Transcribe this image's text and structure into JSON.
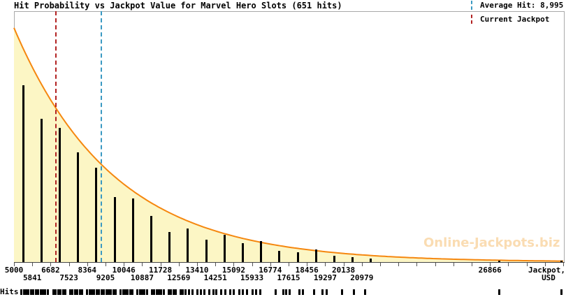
{
  "title": "Hit Probability vs Jackpot Value for Marvel Hero Slots (651 hits)",
  "watermark": "Online-Jackpots.biz",
  "rug_label": "Hits",
  "legend": {
    "average_hit": {
      "label": "Average Hit: 8,995",
      "color": "#3a99c2"
    },
    "current_jackpot": {
      "label": "Current Jackpot",
      "color": "#b22222"
    }
  },
  "colors": {
    "curve": "#f5870f",
    "fill": "#fcf6c5",
    "bars": "#000000",
    "average_hit_line": "#3a99c2",
    "current_jackpot_line": "#b22222",
    "plot_border": "#a9a9a9",
    "axis": "#444444",
    "watermark": "#fadcb2"
  },
  "chart_data": {
    "type": "bar",
    "subtype": "histogram-with-exponential-fit-and-rug",
    "title": "Hit Probability vs Jackpot Value for Marvel Hero Slots (651 hits)",
    "total_hits": 651,
    "xlabel_line1": "Jackpot,",
    "xlabel_line2": "USD",
    "x_range": [
      5000,
      30230
    ],
    "bin_width": 841,
    "tick_step": 841,
    "ylim_hits": [
      0,
      157
    ],
    "grid": false,
    "legend_position": "top-right",
    "average_hit_value": 8995,
    "current_jackpot_value": 6890,
    "tick_labels_row1": [
      5000,
      6682,
      8364,
      10046,
      11728,
      13410,
      15092,
      16774,
      18456,
      20138,
      26866
    ],
    "tick_labels_row2": [
      5841,
      7523,
      9205,
      10887,
      12569,
      14251,
      15933,
      17615,
      19297,
      20979
    ],
    "bars": [
      {
        "value": 5420,
        "count": 111
      },
      {
        "value": 6261,
        "count": 90
      },
      {
        "value": 7102,
        "count": 84
      },
      {
        "value": 7943,
        "count": 69
      },
      {
        "value": 8784,
        "count": 59
      },
      {
        "value": 9625,
        "count": 41
      },
      {
        "value": 10466,
        "count": 40
      },
      {
        "value": 11307,
        "count": 29
      },
      {
        "value": 12148,
        "count": 19
      },
      {
        "value": 12989,
        "count": 21
      },
      {
        "value": 13830,
        "count": 14
      },
      {
        "value": 14671,
        "count": 17
      },
      {
        "value": 15512,
        "count": 12
      },
      {
        "value": 16353,
        "count": 13
      },
      {
        "value": 17194,
        "count": 7
      },
      {
        "value": 18035,
        "count": 6
      },
      {
        "value": 18876,
        "count": 8
      },
      {
        "value": 19717,
        "count": 4
      },
      {
        "value": 20558,
        "count": 3
      },
      {
        "value": 21399,
        "count": 2
      },
      {
        "value": 27286,
        "count": 1
      },
      {
        "value": 30150,
        "count": 1
      }
    ],
    "curve": {
      "model": "exponential_fit",
      "amplitude_hits": 147,
      "start_value": 5000,
      "tau_usd": 4585
    },
    "rug_values": [
      5340,
      5450,
      5560,
      5670,
      5780,
      5890,
      6000,
      6110,
      6220,
      6330,
      6440,
      6550,
      6810,
      6920,
      7030,
      7140,
      7250,
      7360,
      7580,
      7690,
      7800,
      7910,
      8020,
      8130,
      8360,
      8470,
      8580,
      8690,
      8800,
      8910,
      9020,
      9130,
      9240,
      9350,
      9460,
      9570,
      9680,
      9900,
      10010,
      10120,
      10230,
      10340,
      10450,
      10670,
      10780,
      10890,
      11000,
      11110,
      11330,
      11440,
      11550,
      11660,
      11770,
      11880,
      12100,
      12210,
      12320,
      12430,
      12650,
      12760,
      12870,
      13050,
      13200,
      13420,
      13600,
      13750,
      13980,
      14150,
      14300,
      14520,
      14700,
      14930,
      15100,
      15350,
      15500,
      15700,
      15960,
      16130,
      16300,
      17020,
      17380,
      17500,
      17660,
      18110,
      18270,
      18790,
      19170,
      19360,
      20070,
      20610,
      21130,
      27290,
      30150
    ]
  }
}
